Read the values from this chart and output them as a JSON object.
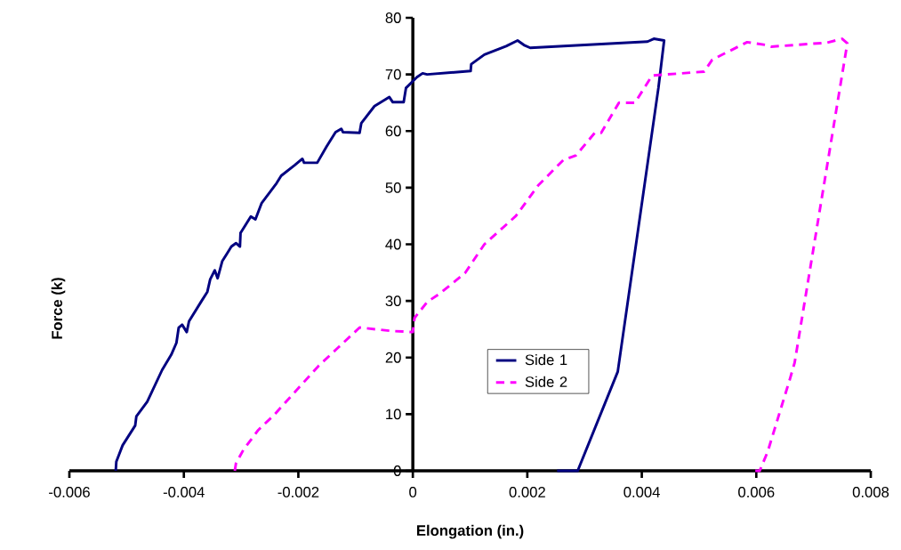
{
  "chart_data": {
    "type": "line",
    "xlabel": "Elongation (in.)",
    "ylabel": "Force (k)",
    "xlim": [
      -0.006,
      0.008
    ],
    "xticks": [
      -0.006,
      -0.004,
      -0.002,
      0,
      0.002,
      0.004,
      0.006,
      0.008
    ],
    "ylim": [
      0,
      80
    ],
    "yticks": [
      0,
      10,
      20,
      30,
      40,
      50,
      60,
      70,
      80
    ],
    "grid": false,
    "legend": "bottom",
    "marker": "none",
    "series": [
      {
        "name": "Side 1",
        "color": "#000080",
        "line_style": "solid",
        "x": [
          -0.00519,
          -0.00518,
          -0.00507,
          -0.00485,
          -0.00483,
          -0.00464,
          -0.00438,
          -0.00422,
          -0.00413,
          -0.00409,
          -0.00403,
          -0.00395,
          -0.00391,
          -0.00369,
          -0.00359,
          -0.00354,
          -0.00346,
          -0.00341,
          -0.00333,
          -0.00317,
          -0.00309,
          -0.00302,
          -0.00301,
          -0.00283,
          -0.00275,
          -0.00264,
          -0.00238,
          -0.0023,
          -0.00206,
          -0.00193,
          -0.0019,
          -0.00167,
          -0.00151,
          -0.00135,
          -0.00125,
          -0.00122,
          -0.00093,
          -0.0009,
          -0.00067,
          -0.00041,
          -0.00035,
          -0.00016,
          -0.00012,
          7e-05,
          0.00017,
          0.00025,
          0.00101,
          0.00102,
          0.00125,
          0.00163,
          0.00183,
          0.00194,
          0.00205,
          0.0041,
          0.00421,
          0.00439,
          0.00429,
          0.00358,
          0.00288,
          0.00252
        ],
        "values": [
          0,
          1.6,
          4.5,
          8,
          9.6,
          12.2,
          17.8,
          20.5,
          22.6,
          25.3,
          25.8,
          24.5,
          26.4,
          30,
          31.6,
          33.8,
          35.4,
          34,
          37,
          39.6,
          40.2,
          39.6,
          42,
          44.9,
          44.4,
          47.3,
          50.8,
          52.1,
          54,
          55.1,
          54.4,
          54.4,
          57.2,
          59.8,
          60.4,
          59.8,
          59.7,
          61.4,
          64.4,
          66,
          65.1,
          65.1,
          67.6,
          69.5,
          70.2,
          70,
          70.6,
          71.8,
          73.5,
          75,
          76,
          75.2,
          74.7,
          75.8,
          76.3,
          76,
          67.6,
          17.5,
          0,
          0
        ]
      },
      {
        "name": "Side 2",
        "color": "#ff00ff",
        "line_style": "dashed",
        "x": [
          -0.00311,
          -0.00309,
          -0.00296,
          -0.0027,
          -0.00243,
          -0.0019,
          -0.00164,
          -0.0013,
          -0.00093,
          -0.00038,
          0,
          3e-05,
          0.00025,
          0.00047,
          0.00091,
          0.00125,
          0.0018,
          0.00219,
          0.00263,
          0.00285,
          0.00318,
          0.00329,
          0.0036,
          0.00388,
          0.00418,
          0.00509,
          0.00523,
          0.00584,
          0.00617,
          0.00626,
          0.00723,
          0.0075,
          0.00759,
          0.00667,
          0.00659,
          0.0062,
          0.00606,
          0.00592
        ],
        "values": [
          0,
          1.3,
          3.7,
          7.2,
          9.8,
          15.7,
          18.6,
          21.8,
          25.3,
          24.7,
          24.5,
          27,
          29.8,
          31.3,
          34.9,
          40,
          45,
          50.4,
          54.9,
          55.7,
          59.7,
          59.7,
          65,
          65,
          69.8,
          70.5,
          72.6,
          75.7,
          75.2,
          74.9,
          75.6,
          76.3,
          75.5,
          19.1,
          16.3,
          3.4,
          0,
          0
        ]
      }
    ]
  }
}
